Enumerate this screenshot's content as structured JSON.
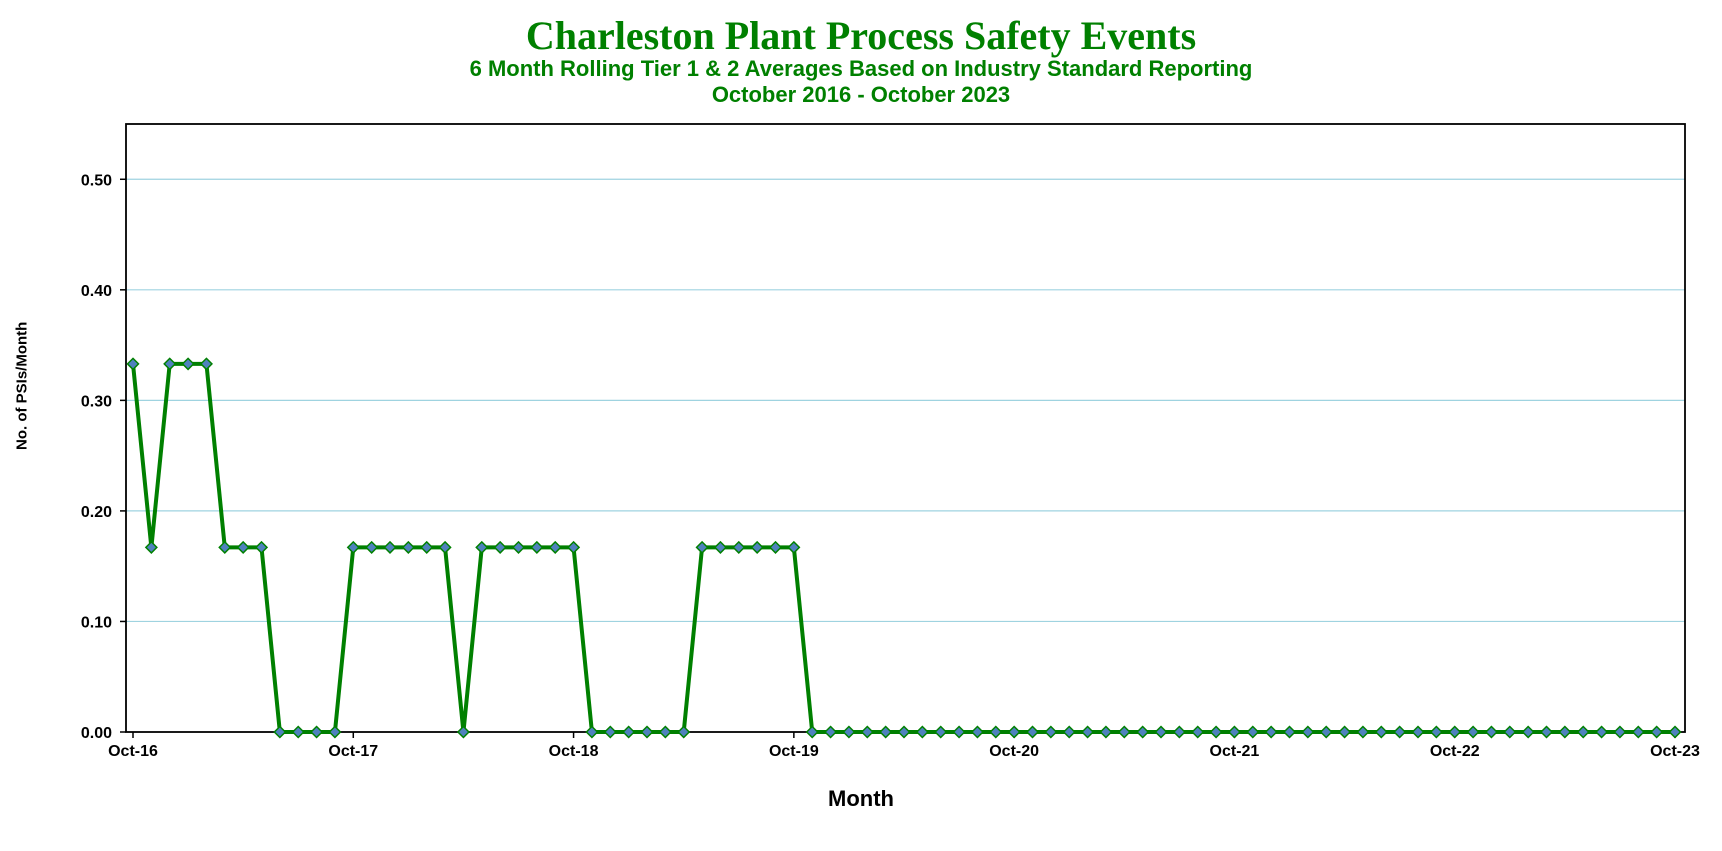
{
  "chart_data": {
    "type": "line",
    "title": "Charleston Plant Process Safety Events",
    "subtitle": "6 Month Rolling Tier 1 & 2 Averages Based on Industry Standard Reporting",
    "subtitle2": "October 2016 - October 2023",
    "xlabel": "Month",
    "ylabel": "No. of PSIs/Month",
    "ylim": [
      0,
      0.55
    ],
    "yticks": [
      "0.00",
      "0.10",
      "0.20",
      "0.30",
      "0.40",
      "0.50"
    ],
    "xtick_labels": [
      "Oct-16",
      "Oct-17",
      "Oct-18",
      "Oct-19",
      "Oct-20",
      "Oct-21",
      "Oct-22",
      "Oct-23"
    ],
    "x_start": "Oct-16",
    "x_end": "Oct-23",
    "grid": "horizontal",
    "colors": {
      "line": "#008000",
      "marker": "#4f81bd",
      "grid": "#9fd3e0",
      "title": "#008000"
    },
    "values": [
      0.333,
      0.167,
      0.333,
      0.333,
      0.333,
      0.167,
      0.167,
      0.167,
      0,
      0,
      0,
      0,
      0.167,
      0.167,
      0.167,
      0.167,
      0.167,
      0.167,
      0,
      0.167,
      0.167,
      0.167,
      0.167,
      0.167,
      0.167,
      0,
      0,
      0,
      0,
      0,
      0,
      0.167,
      0.167,
      0.167,
      0.167,
      0.167,
      0.167,
      0,
      0,
      0,
      0,
      0,
      0,
      0,
      0,
      0,
      0,
      0,
      0,
      0,
      0,
      0,
      0,
      0,
      0,
      0,
      0,
      0,
      0,
      0,
      0,
      0,
      0,
      0,
      0,
      0,
      0,
      0,
      0,
      0,
      0,
      0,
      0,
      0,
      0,
      0,
      0,
      0,
      0,
      0,
      0,
      0,
      0,
      0,
      0
    ]
  }
}
